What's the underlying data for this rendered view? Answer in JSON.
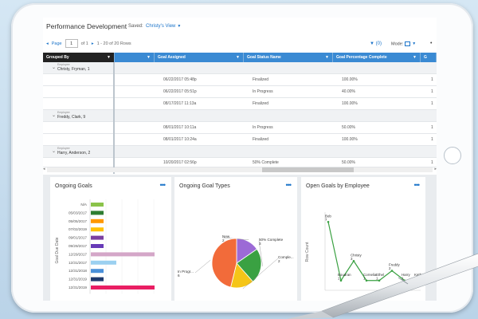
{
  "header": {
    "title": "Performance Development",
    "saved_label": "Saved:",
    "view_name": "Christy's View"
  },
  "pager": {
    "page_label": "Page",
    "page_value": "1",
    "of_label": "of 1",
    "range_text": "1 - 20 of 20 Rows"
  },
  "toolbar": {
    "filter_count": "(0)",
    "mode_label": "Mode:",
    "more": "•"
  },
  "grid": {
    "columns": [
      "Grouped By",
      "",
      "Goal Assigned",
      "Goal Status Name",
      "Goal Percentage Complete",
      "G"
    ],
    "groups": [
      {
        "small": "Employee",
        "name": "Christy, Fryman, 1",
        "rows": [
          [
            "06/22/2017 05:48p",
            "Finalized",
            "100.00%",
            "1"
          ],
          [
            "06/22/2017 05:51p",
            "In Progress",
            "40.00%",
            "1"
          ],
          [
            "08/17/2017 11:13a",
            "Finalized",
            "100.00%",
            "1"
          ]
        ]
      },
      {
        "small": "Employee",
        "name": "Freddy, Clark, 9",
        "rows": [
          [
            "08/01/2017 10:11a",
            "In Progress",
            "50.00%",
            "1"
          ],
          [
            "08/01/2017 10:24a",
            "Finalized",
            "100.00%",
            "1"
          ]
        ]
      },
      {
        "small": "Employee",
        "name": "Harry, Anderson, 2",
        "rows": [
          [
            "10/20/2017 02:56p",
            "50% Complete",
            "50.00%",
            "1"
          ]
        ]
      }
    ]
  },
  "panels": {
    "ongoing_goals": {
      "title": "Ongoing Goals",
      "more": "•••",
      "ylabel": "Goal Due Date"
    },
    "goal_types": {
      "title": "Ongoing Goal Types",
      "more": "•••"
    },
    "open_goals": {
      "title": "Open Goals by Employee",
      "more": "•••",
      "ylabel": "Row Count"
    }
  },
  "chart_data": [
    {
      "type": "bar",
      "title": "Ongoing Goals",
      "ylabel": "Goal Due Date",
      "categories": [
        "N/A",
        "05/03/2017",
        "05/05/2017",
        "07/02/2019",
        "09/01/2017",
        "09/29/2017",
        "12/29/2017",
        "12/31/2017",
        "12/31/2018",
        "12/31/2019",
        "12/31/2019"
      ],
      "values": [
        1,
        1,
        1,
        1,
        1,
        1,
        5,
        2,
        1,
        1,
        5
      ],
      "colors": [
        "#8bc34a",
        "#2e7d32",
        "#ff9800",
        "#ffc107",
        "#7b3fa0",
        "#673ab7",
        "#d4a6c8",
        "#9bd0f0",
        "#4a90d9",
        "#1e3a6e",
        "#e91e63"
      ]
    },
    {
      "type": "pie",
      "title": "Ongoing Goal Types",
      "labels": [
        "New",
        "50% Complete",
        "Comple...",
        "In Progr..."
      ],
      "values": [
        2,
        3,
        2,
        6
      ],
      "colors": [
        "#9c6ad6",
        "#3aa142",
        "#f5c518",
        "#f26b3a"
      ],
      "extra_colors": [
        "#1b5e20"
      ]
    },
    {
      "type": "line",
      "title": "Open Goals by Employee",
      "ylabel": "Row Count",
      "categories": [
        "Bob",
        "Boudran",
        "Christy",
        "Cornelia",
        "Ethel",
        "Freddy",
        "Harry",
        "Kathy"
      ],
      "values": [
        7,
        1,
        3,
        1,
        1,
        2,
        1,
        1
      ]
    }
  ]
}
